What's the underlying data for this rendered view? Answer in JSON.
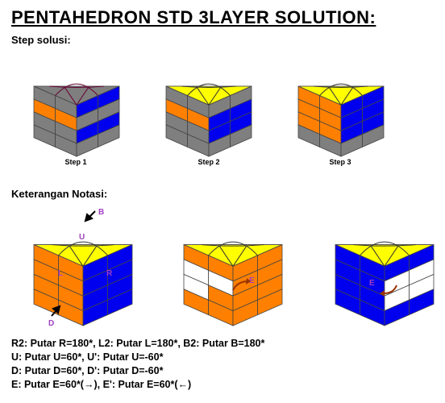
{
  "title": "PENTAHEDRON STD 3LAYER SOLUTION:",
  "section_steps": "Step solusi:",
  "steps": [
    {
      "caption": "Step 1"
    },
    {
      "caption": "Step 2"
    },
    {
      "caption": "Step 3"
    }
  ],
  "section_notation": "Keterangan Notasi:",
  "labels": {
    "B": "B",
    "U": "U",
    "L": "L",
    "R": "R",
    "D": "D",
    "E1": "E",
    "E2": "E"
  },
  "notes": [
    "R2: Putar R=180*, L2: Putar L=180*, B2: Putar B=180*",
    "U: Putar U=60*, U': Putar U=-60*",
    "D: Putar D=60*, D': Putar D=-60*",
    "E: Putar E=60*(→), E': Putar E=60*(←)"
  ],
  "colors": {
    "yellow": "#ffff00",
    "orange": "#ff8000",
    "blue": "#0000ee",
    "gray": "#7f7f7f",
    "white": "#ffffff",
    "label": "#a040c0",
    "arrow": "#993300"
  }
}
